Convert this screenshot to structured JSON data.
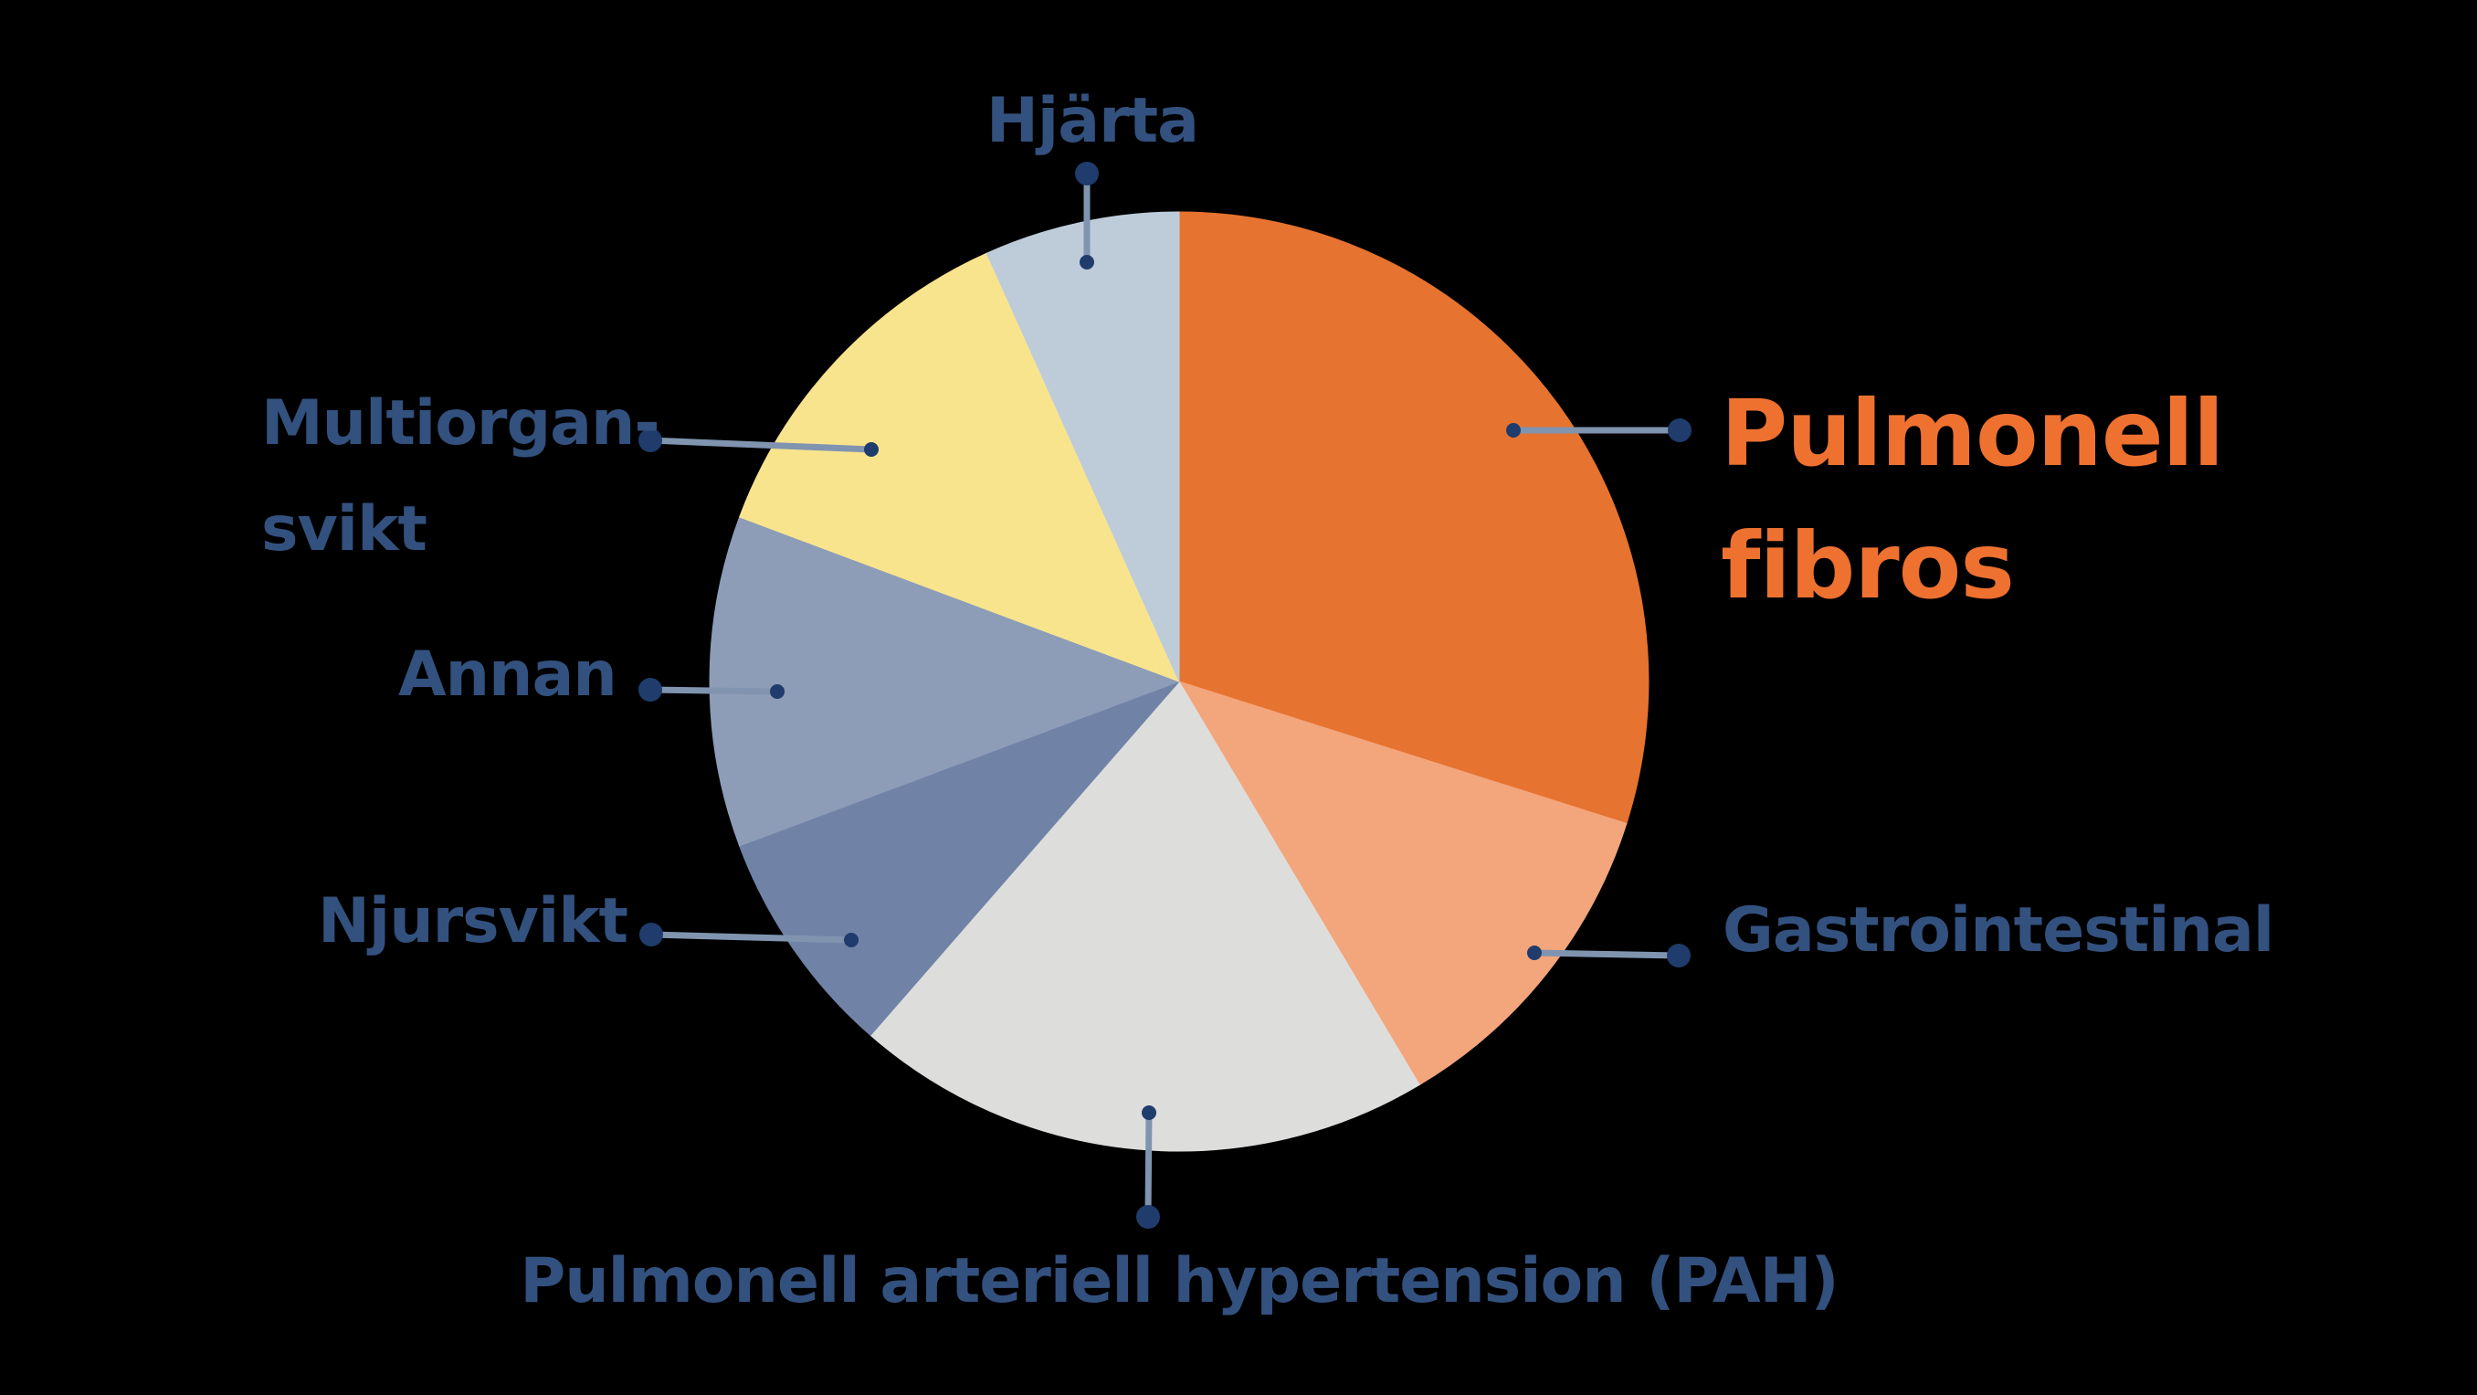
{
  "figure": {
    "background_color": "#000000",
    "label_color": "#33517E",
    "highlight_label_color": "#EE7130",
    "leader_line_color": "#8094B0",
    "leader_dot_color": "#1F3C6C"
  },
  "chart_data": {
    "type": "pie",
    "title": "",
    "start_angle": "12 o'clock, clockwise",
    "value_labels_shown": false,
    "legend_position": "none (direct callout labels with leader lines)",
    "slices": [
      {
        "label": "Pulmonell fibros",
        "angle_deg": 107.6,
        "percent_est": 29.9,
        "color": "#E6732F",
        "highlighted": true
      },
      {
        "label": "Gastrointestinal",
        "angle_deg": 41.6,
        "percent_est": 11.6,
        "color": "#F3A57C",
        "highlighted": false
      },
      {
        "label": "Pulmonell arteriell hypertension (PAH)",
        "angle_deg": 71.9,
        "percent_est": 20.0,
        "color": "#DDDEDC",
        "highlighted": false
      },
      {
        "label": "Njursvikt",
        "angle_deg": 28.4,
        "percent_est": 7.9,
        "color": "#7083A7",
        "highlighted": false
      },
      {
        "label": "Annan",
        "angle_deg": 41.0,
        "percent_est": 11.4,
        "color": "#8D9DB8",
        "highlighted": false
      },
      {
        "label": "Multiorgan-svikt",
        "angle_deg": 45.3,
        "percent_est": 12.6,
        "color": "#F9E48E",
        "highlighted": false
      },
      {
        "label": "Hjärta",
        "angle_deg": 24.2,
        "percent_est": 6.7,
        "color": "#BECCDA",
        "highlighted": false
      }
    ]
  },
  "callouts": {
    "pulmonell_fibros": {
      "line1": "Pulmonell",
      "line2": "fibros"
    },
    "gastrointestinal": {
      "text": "Gastrointestinal"
    },
    "pah": {
      "text": "Pulmonell arteriell hypertension (PAH)"
    },
    "njursvikt": {
      "text": "Njursvikt"
    },
    "annan": {
      "text": "Annan"
    },
    "multiorgan": {
      "line1": "Multiorgan-",
      "line2": "svikt"
    },
    "hjarta": {
      "text": "Hjärta"
    }
  }
}
